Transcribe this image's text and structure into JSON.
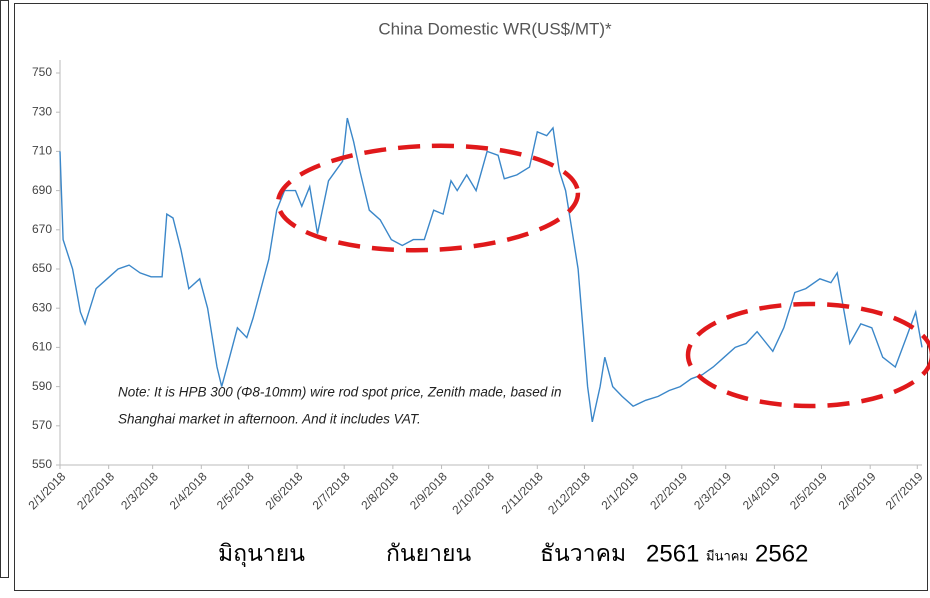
{
  "chart_data": {
    "type": "line",
    "title": "China Domestic WR(US$/MT)*",
    "annotations": [
      "Note: It is HPB 300 (Φ8-10mm) wire rod spot price, Zenith made, based in",
      "Shanghai market in afternoon. And it includes VAT."
    ],
    "caption": [
      "มิถุนายน",
      "กันยายน",
      "ธันวาคม",
      "2561",
      "มีนาคม",
      "2562"
    ],
    "color": "#3b87c9",
    "x": [
      "2018-01-02",
      "2018-01-04",
      "2018-01-10",
      "2018-01-15",
      "2018-01-18",
      "2018-01-25",
      "2018-02-01",
      "2018-02-08",
      "2018-02-15",
      "2018-02-22",
      "2018-03-01",
      "2018-03-08",
      "2018-03-11",
      "2018-03-15",
      "2018-03-20",
      "2018-03-25",
      "2018-04-01",
      "2018-04-06",
      "2018-04-12",
      "2018-04-15",
      "2018-04-20",
      "2018-04-25",
      "2018-05-01",
      "2018-05-05",
      "2018-05-10",
      "2018-05-15",
      "2018-05-20",
      "2018-05-25",
      "2018-06-01",
      "2018-06-05",
      "2018-06-10",
      "2018-06-15",
      "2018-06-22",
      "2018-07-01",
      "2018-07-04",
      "2018-07-08",
      "2018-07-12",
      "2018-07-18",
      "2018-07-25",
      "2018-08-01",
      "2018-08-08",
      "2018-08-15",
      "2018-08-22",
      "2018-08-28",
      "2018-09-03",
      "2018-09-08",
      "2018-09-12",
      "2018-09-18",
      "2018-09-24",
      "2018-10-01",
      "2018-10-08",
      "2018-10-12",
      "2018-10-20",
      "2018-10-28",
      "2018-11-02",
      "2018-11-08",
      "2018-11-12",
      "2018-11-16",
      "2018-11-20",
      "2018-11-24",
      "2018-11-28",
      "2018-12-01",
      "2018-12-04",
      "2018-12-07",
      "2018-12-12",
      "2018-12-15",
      "2018-12-20",
      "2018-12-26",
      "2019-01-02",
      "2019-01-10",
      "2019-01-18",
      "2019-01-25",
      "2019-02-01",
      "2019-02-08",
      "2019-02-15",
      "2019-02-22",
      "2019-03-01",
      "2019-03-08",
      "2019-03-15",
      "2019-03-22",
      "2019-04-01",
      "2019-04-08",
      "2019-04-15",
      "2019-04-22",
      "2019-05-01",
      "2019-05-08",
      "2019-05-12",
      "2019-05-16",
      "2019-05-20",
      "2019-05-27",
      "2019-06-03",
      "2019-06-10",
      "2019-06-18",
      "2019-06-25",
      "2019-07-01",
      "2019-07-05"
    ],
    "values": [
      710,
      665,
      650,
      628,
      622,
      640,
      645,
      650,
      652,
      648,
      646,
      646,
      678,
      676,
      660,
      640,
      645,
      630,
      600,
      590,
      605,
      620,
      615,
      625,
      640,
      655,
      680,
      690,
      690,
      682,
      692,
      668,
      695,
      705,
      727,
      715,
      700,
      680,
      675,
      665,
      662,
      665,
      665,
      680,
      678,
      695,
      690,
      698,
      690,
      710,
      708,
      696,
      698,
      702,
      720,
      718,
      722,
      700,
      690,
      670,
      650,
      620,
      590,
      572,
      590,
      605,
      590,
      585,
      580,
      583,
      585,
      588,
      590,
      594,
      596,
      600,
      605,
      610,
      612,
      618,
      608,
      620,
      638,
      640,
      645,
      643,
      648,
      630,
      612,
      622,
      620,
      605,
      600,
      615,
      628,
      610
    ],
    "xlim": [
      "2018-01-02",
      "2019-07-05"
    ],
    "xticks": [
      {
        "value": "2018-01-02",
        "label": "2/1/2018"
      },
      {
        "value": "2018-02-02",
        "label": "2/2/2018"
      },
      {
        "value": "2018-03-02",
        "label": "2/3/2018"
      },
      {
        "value": "2018-04-02",
        "label": "2/4/2018"
      },
      {
        "value": "2018-05-02",
        "label": "2/5/2018"
      },
      {
        "value": "2018-06-02",
        "label": "2/6/2018"
      },
      {
        "value": "2018-07-02",
        "label": "2/7/2018"
      },
      {
        "value": "2018-08-02",
        "label": "2/8/2018"
      },
      {
        "value": "2018-09-02",
        "label": "2/9/2018"
      },
      {
        "value": "2018-10-02",
        "label": "2/10/2018"
      },
      {
        "value": "2018-11-02",
        "label": "2/11/2018"
      },
      {
        "value": "2018-12-02",
        "label": "2/12/2018"
      },
      {
        "value": "2019-01-02",
        "label": "2/1/2019"
      },
      {
        "value": "2019-02-02",
        "label": "2/2/2019"
      },
      {
        "value": "2019-03-02",
        "label": "2/3/2019"
      },
      {
        "value": "2019-04-02",
        "label": "2/4/2019"
      },
      {
        "value": "2019-05-02",
        "label": "2/5/2019"
      },
      {
        "value": "2019-06-02",
        "label": "2/6/2019"
      },
      {
        "value": "2019-07-02",
        "label": "2/7/2019"
      }
    ],
    "ylim": [
      550,
      750
    ],
    "yticks": [
      550,
      570,
      590,
      610,
      630,
      650,
      670,
      690,
      710,
      730,
      750
    ],
    "grid": false
  }
}
